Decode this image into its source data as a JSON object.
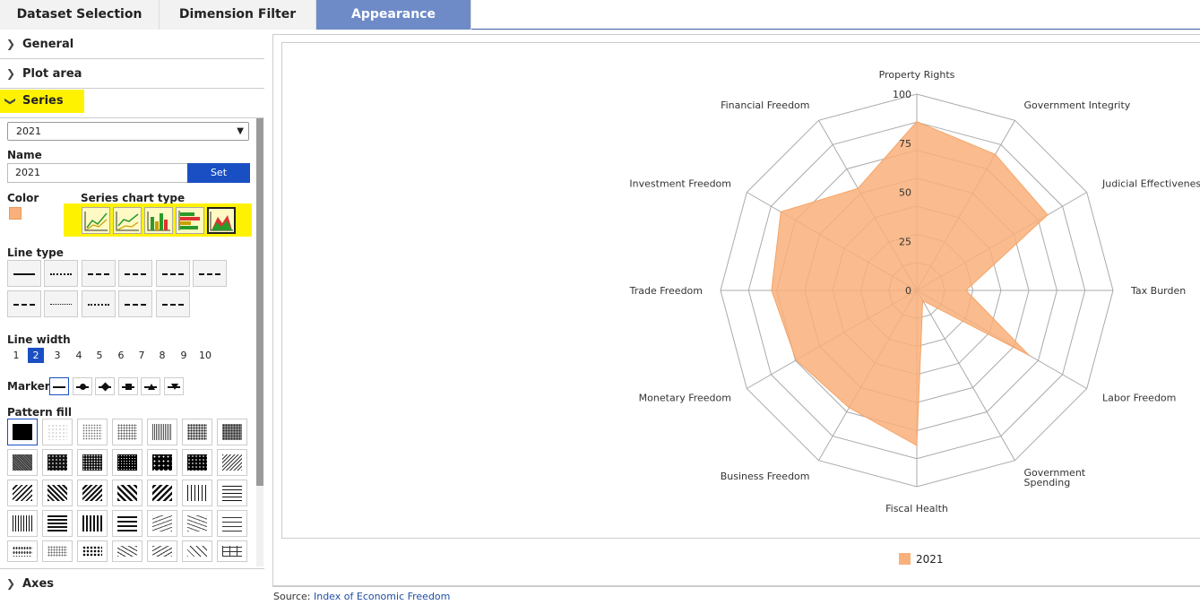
{
  "tabs": [
    "Dataset Selection",
    "Dimension Filter",
    "Appearance"
  ],
  "accordion": {
    "general": "General",
    "plot_area": "Plot area",
    "series": "Series",
    "axes": "Axes"
  },
  "series_panel": {
    "selected_series": "2021",
    "name_label": "Name",
    "name_value": "2021",
    "set_button": "Set",
    "color_label": "Color",
    "color": "#f9b07a",
    "chart_type_label": "Series chart type",
    "chart_types": [
      "line-chart-icon",
      "area-line-chart-icon",
      "column-chart-icon",
      "bar-chart-icon",
      "area-chart-icon"
    ],
    "line_type_label": "Line type",
    "line_width_label": "Line width",
    "line_widths": [
      "1",
      "2",
      "3",
      "4",
      "5",
      "6",
      "7",
      "8",
      "9",
      "10"
    ],
    "line_width_selected": "2",
    "marker_label": "Marker",
    "pattern_fill_label": "Pattern fill"
  },
  "chart_data": {
    "type": "radar",
    "title": "",
    "categories": [
      "Property Rights",
      "Government Integrity",
      "Judicial Effectiveness",
      "Tax Burden",
      "Labor Freedom",
      "Government Spending",
      "Fiscal Health",
      "Business Freedom",
      "Monetary Freedom",
      "Trade Freedom",
      "Investment Freedom",
      "Financial Freedom"
    ],
    "series": [
      {
        "name": "2021",
        "color": "#f9b07a",
        "values": [
          86,
          80,
          77,
          25,
          66,
          6,
          79,
          69,
          71,
          74,
          80,
          60
        ]
      }
    ],
    "radial_ticks": [
      "0",
      "25",
      "50",
      "75",
      "100"
    ],
    "rmax": 100,
    "grid_rings": 7,
    "legend": "bottom-center"
  },
  "source": {
    "prefix": "Source: ",
    "link": "Index of Economic Freedom"
  }
}
